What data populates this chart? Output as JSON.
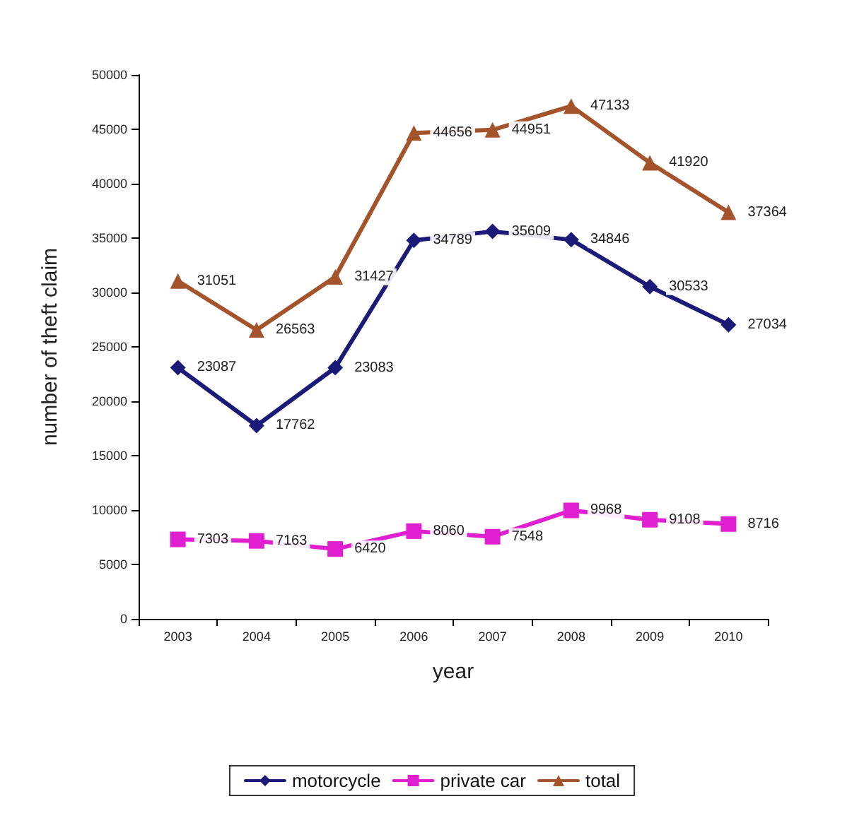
{
  "chart_data": {
    "type": "line",
    "xlabel": "year",
    "ylabel": "number of theft claim",
    "categories": [
      "2003",
      "2004",
      "2005",
      "2006",
      "2007",
      "2008",
      "2009",
      "2010"
    ],
    "series": [
      {
        "name": "motorcycle",
        "color": "#1c1a78",
        "marker": "diamond",
        "values": [
          23087,
          17762,
          23083,
          34789,
          35609,
          34846,
          30533,
          27034
        ]
      },
      {
        "name": "private car",
        "color": "#e020d0",
        "marker": "square",
        "values": [
          7303,
          7163,
          6420,
          8060,
          7548,
          9968,
          9108,
          8716
        ]
      },
      {
        "name": "total",
        "color": "#a5532a",
        "marker": "triangle",
        "values": [
          31051,
          26563,
          31427,
          44656,
          44951,
          47133,
          41920,
          37364
        ]
      }
    ],
    "ylim": [
      0,
      50000
    ],
    "yticks": [
      0,
      5000,
      10000,
      15000,
      20000,
      25000,
      30000,
      35000,
      40000,
      45000,
      50000
    ],
    "grid": false,
    "legend": "bottom",
    "data_labels": true,
    "line_style": "solid"
  }
}
